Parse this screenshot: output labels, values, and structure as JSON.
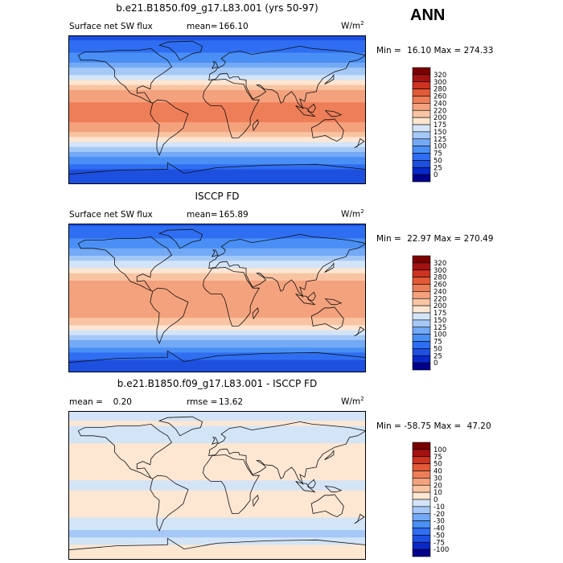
{
  "season": "ANN",
  "chart_data": [
    {
      "type": "heatmap",
      "title": "b.e21.B1850.f09_g17.L83.001 (yrs 50-97)",
      "variable": "Surface net SW flux",
      "stat_label": "mean=",
      "stat_value": "166.10",
      "units": "W/m",
      "units_sup": "2",
      "min_label": "Min =",
      "min_value": "16.10",
      "max_label": "Max =",
      "max_value": "274.33",
      "colorbar_levels": [
        "0",
        "25",
        "50",
        "75",
        "100",
        "125",
        "150",
        "175",
        "200",
        "220",
        "240",
        "260",
        "280",
        "300",
        "320"
      ],
      "colorbar_colors": [
        "#00008b",
        "#0a28c8",
        "#1e50e0",
        "#2f6ef2",
        "#4a8ff5",
        "#73a9f5",
        "#a5c8f6",
        "#d3e4f7",
        "#fde6d2",
        "#f9c4a3",
        "#f4a27d",
        "#ee7e58",
        "#e25a37",
        "#cc3320",
        "#a51212",
        "#7a0000"
      ],
      "lat_profile": [
        {
          "lat": 90,
          "value": 40
        },
        {
          "lat": 75,
          "value": 60
        },
        {
          "lat": 60,
          "value": 95
        },
        {
          "lat": 45,
          "value": 140
        },
        {
          "lat": 30,
          "value": 205
        },
        {
          "lat": 15,
          "value": 235
        },
        {
          "lat": 0,
          "value": 245
        },
        {
          "lat": -15,
          "value": 240
        },
        {
          "lat": -30,
          "value": 215
        },
        {
          "lat": -45,
          "value": 150
        },
        {
          "lat": -60,
          "value": 90
        },
        {
          "lat": -75,
          "value": 45
        },
        {
          "lat": -90,
          "value": 30
        }
      ]
    },
    {
      "type": "heatmap",
      "title": "ISCCP FD",
      "variable": "Surface net SW flux",
      "stat_label": "mean=",
      "stat_value": "165.89",
      "units": "W/m",
      "units_sup": "2",
      "min_label": "Min =",
      "min_value": "22.97",
      "max_label": "Max =",
      "max_value": "270.49",
      "colorbar_levels": [
        "0",
        "25",
        "50",
        "75",
        "100",
        "125",
        "150",
        "175",
        "200",
        "220",
        "240",
        "260",
        "280",
        "300",
        "320"
      ],
      "colorbar_colors": [
        "#00008b",
        "#0a28c8",
        "#1e50e0",
        "#2f6ef2",
        "#4a8ff5",
        "#73a9f5",
        "#a5c8f6",
        "#d3e4f7",
        "#fde6d2",
        "#f9c4a3",
        "#f4a27d",
        "#ee7e58",
        "#e25a37",
        "#cc3320",
        "#a51212",
        "#7a0000"
      ],
      "lat_profile": [
        {
          "lat": 90,
          "value": 45
        },
        {
          "lat": 75,
          "value": 65
        },
        {
          "lat": 60,
          "value": 100
        },
        {
          "lat": 45,
          "value": 145
        },
        {
          "lat": 30,
          "value": 200
        },
        {
          "lat": 15,
          "value": 230
        },
        {
          "lat": 0,
          "value": 240
        },
        {
          "lat": -15,
          "value": 235
        },
        {
          "lat": -30,
          "value": 210
        },
        {
          "lat": -45,
          "value": 150
        },
        {
          "lat": -60,
          "value": 95
        },
        {
          "lat": -75,
          "value": 50
        },
        {
          "lat": -90,
          "value": 35
        }
      ]
    },
    {
      "type": "heatmap",
      "title": "b.e21.B1850.f09_g17.L83.001 - ISCCP FD",
      "stat_label": "mean =",
      "stat_value": "0.20",
      "stat2_label": "rmse =",
      "stat2_value": "13.62",
      "units": "W/m",
      "units_sup": "2",
      "min_label": "Min =",
      "min_value": "-58.75",
      "max_label": "Max =",
      "max_value": "47.20",
      "colorbar_levels": [
        "-100",
        "-75",
        "-50",
        "-40",
        "-30",
        "-20",
        "-10",
        "0",
        "10",
        "20",
        "30",
        "40",
        "50",
        "75",
        "100"
      ],
      "colorbar_colors": [
        "#00008b",
        "#0a28c8",
        "#1e50e0",
        "#2f6ef2",
        "#4a8ff5",
        "#73a9f5",
        "#a5c8f6",
        "#d3e4f7",
        "#fde6d2",
        "#f9c4a3",
        "#f4a27d",
        "#ee7e58",
        "#e25a37",
        "#cc3320",
        "#a51212",
        "#7a0000"
      ],
      "lat_profile": [
        {
          "lat": 90,
          "value": -5
        },
        {
          "lat": 75,
          "value": 2
        },
        {
          "lat": 60,
          "value": -8
        },
        {
          "lat": 45,
          "value": 5
        },
        {
          "lat": 30,
          "value": 8
        },
        {
          "lat": 15,
          "value": 4
        },
        {
          "lat": 0,
          "value": -3
        },
        {
          "lat": -15,
          "value": 6
        },
        {
          "lat": -30,
          "value": 10
        },
        {
          "lat": -45,
          "value": -6
        },
        {
          "lat": -60,
          "value": -12
        },
        {
          "lat": -75,
          "value": 3
        },
        {
          "lat": -90,
          "value": 0
        }
      ]
    }
  ]
}
